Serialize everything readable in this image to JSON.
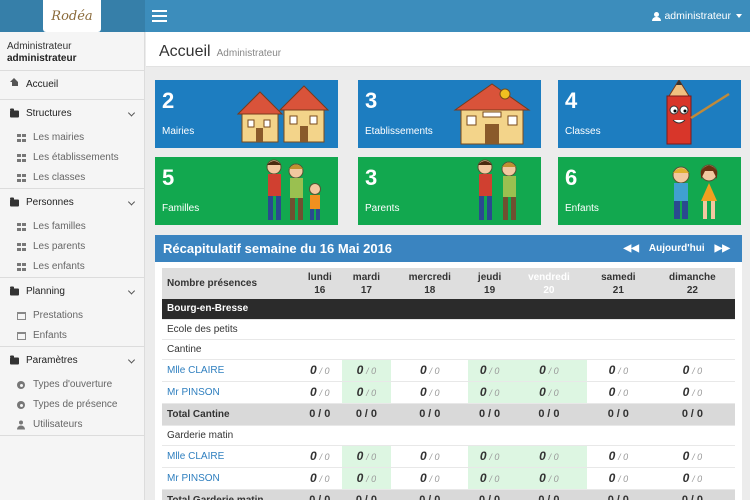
{
  "app": {
    "logo_text": "Rodéa"
  },
  "topbar": {
    "user_label": "administrateur"
  },
  "sidebar": {
    "role": "Administrateur",
    "username": "administrateur",
    "home_label": "Accueil",
    "sections": [
      {
        "label": "Structures",
        "items": [
          "Les mairies",
          "Les établissements",
          "Les classes"
        ]
      },
      {
        "label": "Personnes",
        "items": [
          "Les familles",
          "Les parents",
          "Les enfants"
        ]
      },
      {
        "label": "Planning",
        "items": [
          "Prestations",
          "Enfants"
        ]
      },
      {
        "label": "Paramètres",
        "items": [
          "Types d'ouverture",
          "Types de présence",
          "Utilisateurs"
        ]
      }
    ]
  },
  "page": {
    "title": "Accueil",
    "subtitle": "Administrateur"
  },
  "tiles": [
    {
      "count": "2",
      "label": "Mairies",
      "color": "#1d7dc0"
    },
    {
      "count": "3",
      "label": "Etablissements",
      "color": "#1d7dc0"
    },
    {
      "count": "4",
      "label": "Classes",
      "color": "#1d7dc0"
    },
    {
      "count": "5",
      "label": "Familles",
      "color": "#12a84f"
    },
    {
      "count": "3",
      "label": "Parents",
      "color": "#12a84f"
    },
    {
      "count": "6",
      "label": "Enfants",
      "color": "#12a84f"
    }
  ],
  "week": {
    "title": "Récapitulatif semaine du 16 Mai 2016",
    "prev_icon": "◀◀",
    "today_label": "Aujourd'hui",
    "next_icon": "▶▶",
    "first_header": "Nombre présences",
    "days": [
      {
        "name": "lundi",
        "num": "16"
      },
      {
        "name": "mardi",
        "num": "17"
      },
      {
        "name": "mercredi",
        "num": "18"
      },
      {
        "name": "jeudi",
        "num": "19"
      },
      {
        "name": "vendredi",
        "num": "20"
      },
      {
        "name": "samedi",
        "num": "21"
      },
      {
        "name": "dimanche",
        "num": "22"
      }
    ],
    "city": "Bourg-en-Bresse",
    "school": "Ecole des petits",
    "groups": [
      {
        "label": "Cantine",
        "people": [
          "Mlle CLAIRE",
          "Mr PINSON"
        ],
        "total_label": "Total Cantine"
      },
      {
        "label": "Garderie matin",
        "people": [
          "Mlle CLAIRE",
          "Mr PINSON"
        ],
        "total_label": "Total Garderie matin"
      }
    ],
    "cell_value": "0",
    "cell_max": "/ 0",
    "total_value": "0",
    "total_max": "/ 0"
  }
}
